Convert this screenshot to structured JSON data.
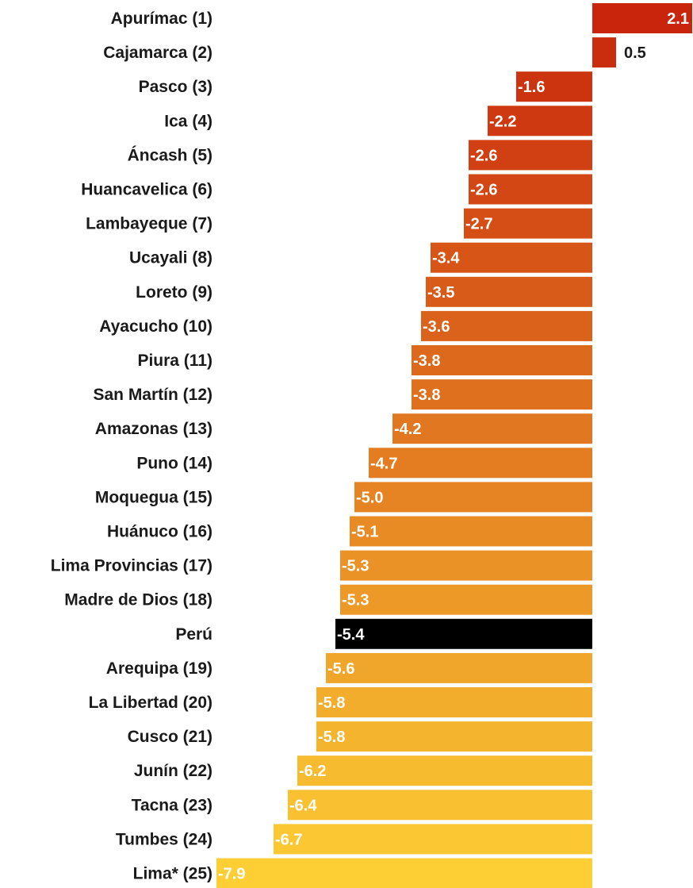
{
  "chart_data": {
    "type": "bar",
    "orientation": "horizontal",
    "title": "",
    "xlabel": "",
    "ylabel": "",
    "grid": false,
    "categories": [
      "Apurímac (1)",
      "Cajamarca (2)",
      "Pasco (3)",
      "Ica (4)",
      "Áncash (5)",
      "Huancavelica (6)",
      "Lambayeque (7)",
      "Ucayali (8)",
      "Loreto (9)",
      "Ayacucho (10)",
      "Piura (11)",
      "San Martín (12)",
      "Amazonas (13)",
      "Puno (14)",
      "Moquegua (15)",
      "Huánuco (16)",
      "Lima Provincias (17)",
      "Madre de Dios (18)",
      "Perú",
      "Arequipa (19)",
      "La Libertad (20)",
      "Cusco (21)",
      "Junín (22)",
      "Tacna (23)",
      "Tumbes (24)",
      "Lima* (25)"
    ],
    "values": [
      2.1,
      0.5,
      -1.6,
      -2.2,
      -2.6,
      -2.6,
      -2.7,
      -3.4,
      -3.5,
      -3.6,
      -3.8,
      -3.8,
      -4.2,
      -4.7,
      -5.0,
      -5.1,
      -5.3,
      -5.3,
      -5.4,
      -5.6,
      -5.8,
      -5.8,
      -6.2,
      -6.4,
      -6.7,
      -7.9
    ],
    "value_labels": [
      "2.1",
      "0.5",
      "-1.6",
      "-2.2",
      "-2.6",
      "-2.6",
      "-2.7",
      "-3.4",
      "-3.5",
      "-3.6",
      "-3.8",
      "-3.8",
      "-4.2",
      "-4.7",
      "-5.0",
      "-5.1",
      "-5.3",
      "-5.3",
      "-5.4",
      "-5.6",
      "-5.8",
      "-5.8",
      "-6.2",
      "-6.4",
      "-6.7",
      "-7.9"
    ],
    "highlight_category": "Perú",
    "highlight_color": "#000000",
    "color_top": "#c8250c",
    "color_bottom": "#fdcf35",
    "xlim": [
      -7.9,
      2.1
    ]
  }
}
